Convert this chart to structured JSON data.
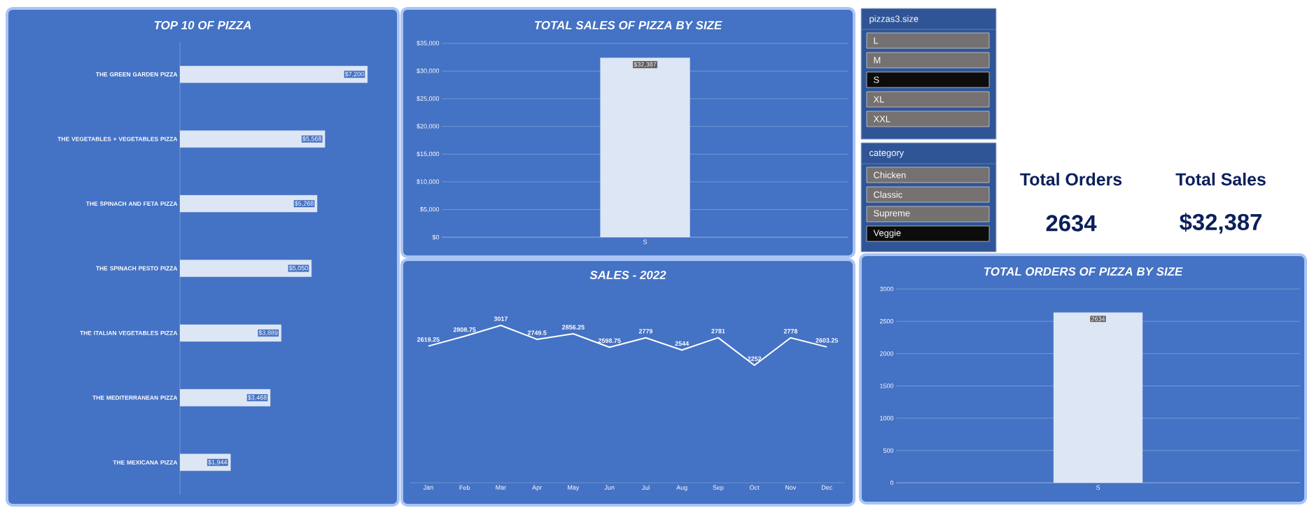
{
  "chart_data": [
    {
      "type": "bar",
      "orientation": "horizontal",
      "title": "TOP 10 OF PIZZA",
      "categories": [
        "THE GREEN GARDEN PIZZA",
        "THE VEGETABLES + VEGETABLES PIZZA",
        "THE SPINACH AND FETA PIZZA",
        "THE SPINACH PESTO PIZZA",
        "THE ITALIAN VEGETABLES PIZZA",
        "THE MEDITERRANEAN PIZZA",
        "THE MEXICANA PIZZA"
      ],
      "values": [
        7200,
        5568,
        5268,
        5050,
        3889,
        3468,
        1944
      ],
      "value_labels": [
        "$7,200",
        "$5,568",
        "$5,268",
        "$5,050",
        "$3,889",
        "$3,468",
        "$1,944"
      ],
      "color": "#dce6f5"
    },
    {
      "type": "bar",
      "title": "TOTAL SALES OF PIZZA BY SIZE",
      "categories": [
        "S"
      ],
      "values": [
        32387
      ],
      "value_labels": [
        "$32,387"
      ],
      "color": "#dce6f5",
      "ylim": [
        0,
        35000
      ],
      "yticks": [
        {
          "value": 0,
          "label": "$0"
        },
        {
          "value": 5000,
          "label": "$5,000"
        },
        {
          "value": 10000,
          "label": "$10,000"
        },
        {
          "value": 15000,
          "label": "$15,000"
        },
        {
          "value": 20000,
          "label": "$20,000"
        },
        {
          "value": 25000,
          "label": "$25,000"
        },
        {
          "value": 30000,
          "label": "$30,000"
        },
        {
          "value": 35000,
          "label": "$35,000"
        }
      ],
      "grid": "y"
    },
    {
      "type": "other",
      "title": "pizzas3.size",
      "categories": [
        "L",
        "M",
        "S",
        "XL",
        "XXL"
      ],
      "colors": [
        "#767171",
        "#767171",
        "#0d0d0d",
        "#767171",
        "#767171"
      ]
    },
    {
      "type": "other",
      "title": "category",
      "categories": [
        "Chicken",
        "Classic",
        "Supreme",
        "Veggie"
      ],
      "colors": [
        "#767171",
        "#767171",
        "#767171",
        "#0d0d0d"
      ]
    },
    {
      "type": "other",
      "title": "Total Orders",
      "annotations": [
        "2634"
      ],
      "color": "#0b1f5c"
    },
    {
      "type": "other",
      "title": "Total Sales",
      "annotations": [
        "$32,387"
      ],
      "color": "#0b1f5c"
    },
    {
      "type": "line",
      "title": "SALES - 2022",
      "categories": [
        "Jan",
        "Feb",
        "Mar",
        "Apr",
        "May",
        "Jun",
        "Jul",
        "Aug",
        "Sep",
        "Oct",
        "Nov",
        "Dec"
      ],
      "values": [
        2619.25,
        2808.75,
        3017,
        2749.5,
        2856.25,
        2598.75,
        2779,
        2544,
        2781,
        2252,
        2778,
        2603.25
      ],
      "data_labels": true,
      "color": "#ffffff"
    },
    {
      "type": "bar",
      "title": "TOTAL ORDERS OF PIZZA BY SIZE",
      "categories": [
        "S"
      ],
      "values": [
        2634
      ],
      "data_labels": true,
      "color": "#dce6f5",
      "ylim": [
        0,
        3000
      ],
      "yticks": [
        0,
        500,
        1000,
        1500,
        2000,
        2500,
        3000
      ],
      "grid": "y"
    }
  ]
}
